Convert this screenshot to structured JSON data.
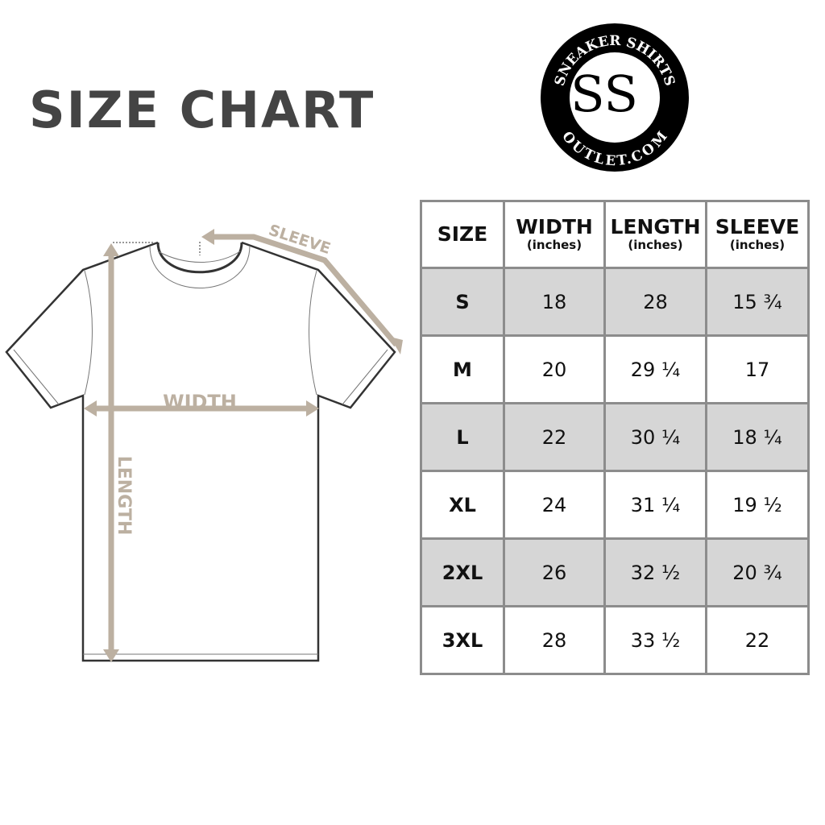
{
  "title": "SIZE CHART",
  "logo": {
    "top_text": "SNEAKER SHIRTS",
    "bottom_text": "OUTLET.COM",
    "monogram": "SS"
  },
  "diagram": {
    "labels": {
      "sleeve": "SLEEVE",
      "width": "WIDTH",
      "length": "LENGTH"
    },
    "accent_color": "#bcb0a1"
  },
  "table": {
    "headers": [
      {
        "label": "SIZE",
        "unit": ""
      },
      {
        "label": "WIDTH",
        "unit": "(inches)"
      },
      {
        "label": "LENGTH",
        "unit": "(inches)"
      },
      {
        "label": "SLEEVE",
        "unit": "(inches)"
      }
    ],
    "rows": [
      [
        "S",
        "18",
        "28",
        "15 ¾"
      ],
      [
        "M",
        "20",
        "29 ¼",
        "17"
      ],
      [
        "L",
        "22",
        "30 ¼",
        "18 ¼"
      ],
      [
        "XL",
        "24",
        "31 ¼",
        "19 ½"
      ],
      [
        "2XL",
        "26",
        "32 ½",
        "20 ¾"
      ],
      [
        "3XL",
        "28",
        "33 ½",
        "22"
      ]
    ],
    "shade_color": "#d6d6d6"
  }
}
